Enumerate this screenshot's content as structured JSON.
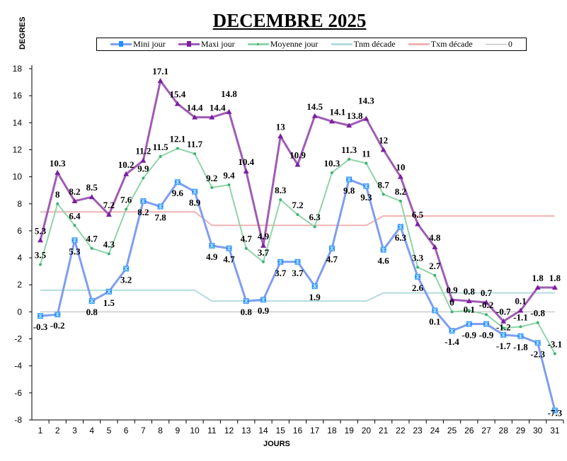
{
  "chart_data": {
    "type": "line",
    "title": "DECEMBRE 2025",
    "xlabel": "JOURS",
    "ylabel": "DEGRES",
    "x": [
      1,
      2,
      3,
      4,
      5,
      6,
      7,
      8,
      9,
      10,
      11,
      12,
      13,
      14,
      15,
      16,
      17,
      18,
      19,
      20,
      21,
      22,
      23,
      24,
      25,
      26,
      27,
      28,
      29,
      30,
      31
    ],
    "ylim": [
      -8,
      18
    ],
    "yticks": [
      -8,
      -6,
      -4,
      -2,
      0,
      2,
      4,
      6,
      8,
      10,
      12,
      14,
      16,
      18
    ],
    "grid": false,
    "legend_placement": "top",
    "series": [
      {
        "name": "Mini jour",
        "color": "#7f9ef0",
        "marker": "asterisk-square",
        "marker_color": "#1e90ff",
        "labels": true,
        "values": [
          -0.3,
          -0.2,
          5.3,
          0.8,
          1.5,
          3.2,
          8.2,
          7.8,
          9.6,
          8.9,
          4.9,
          4.7,
          0.8,
          0.9,
          3.7,
          3.7,
          1.9,
          4.7,
          9.8,
          9.3,
          4.6,
          6.3,
          2.6,
          0.1,
          -1.4,
          -0.9,
          -0.9,
          -1.7,
          -1.8,
          -2.3,
          -7.3
        ]
      },
      {
        "name": "Maxi jour",
        "color": "#a05bb4",
        "marker": "triangle",
        "marker_color": "#7a1fa0",
        "labels": true,
        "values": [
          5.3,
          10.3,
          8.2,
          8.5,
          7.2,
          10.2,
          11.2,
          17.1,
          15.4,
          14.4,
          14.4,
          14.8,
          10.4,
          4.9,
          13,
          10.9,
          14.5,
          14.1,
          13.8,
          14.3,
          12,
          10,
          6.5,
          4.8,
          0.9,
          0.8,
          0.7,
          -0.7,
          0.1,
          1.8,
          1.8
        ]
      },
      {
        "name": "Moyenne jour",
        "color": "#8fd4a8",
        "marker": "dot",
        "marker_color": "#3cb371",
        "labels": true,
        "values": [
          3.5,
          8,
          6.4,
          4.7,
          4.3,
          7.6,
          9.9,
          11.5,
          12.1,
          11.7,
          9.2,
          9.4,
          4.7,
          3.7,
          8.3,
          7.2,
          6.3,
          10.3,
          11.3,
          11,
          8.7,
          8.2,
          3.3,
          2.7,
          0,
          0.1,
          -0.2,
          -1.2,
          -1.1,
          -0.8,
          -3.1
        ]
      },
      {
        "name": "Tnm décade",
        "color": "#b4dcdc",
        "marker": "none",
        "labels": false,
        "values": [
          1.6,
          1.6,
          1.6,
          1.6,
          1.6,
          1.6,
          1.6,
          1.6,
          1.6,
          1.6,
          0.8,
          0.8,
          0.8,
          0.8,
          0.8,
          0.8,
          0.8,
          0.8,
          0.8,
          0.8,
          1.4,
          1.4,
          1.4,
          1.4,
          1.4,
          1.4,
          1.4,
          1.4,
          1.4,
          1.4,
          1.4
        ]
      },
      {
        "name": "Txm décade",
        "color": "#f0b4b4",
        "marker": "none",
        "labels": false,
        "values": [
          7.4,
          7.4,
          7.4,
          7.4,
          7.4,
          7.4,
          7.4,
          7.4,
          7.4,
          7.4,
          6.4,
          6.4,
          6.4,
          6.4,
          6.4,
          6.4,
          6.4,
          6.4,
          6.4,
          6.4,
          7.1,
          7.1,
          7.1,
          7.1,
          7.1,
          7.1,
          7.1,
          7.1,
          7.1,
          7.1,
          7.1
        ]
      },
      {
        "name": "0",
        "color": "#b4b4b4",
        "marker": "none",
        "labels": false,
        "values": [
          0,
          0,
          0,
          0,
          0,
          0,
          0,
          0,
          0,
          0,
          0,
          0,
          0,
          0,
          0,
          0,
          0,
          0,
          0,
          0,
          0,
          0,
          0,
          0,
          0,
          0,
          0,
          0,
          0,
          0,
          0
        ]
      }
    ]
  }
}
